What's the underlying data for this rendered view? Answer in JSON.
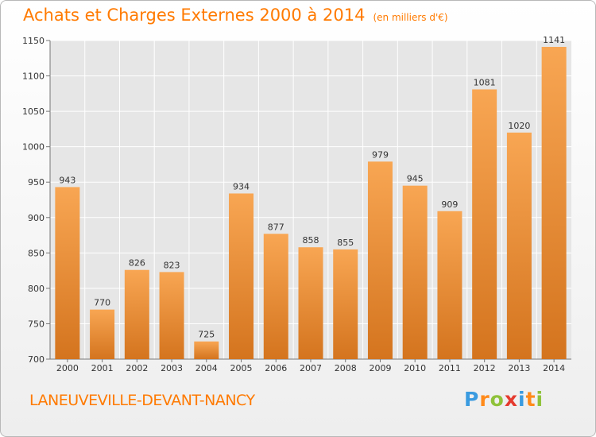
{
  "header": {
    "title": "Achats et Charges Externes 2000 à 2014",
    "unit": "(en milliers d'€)"
  },
  "footer": {
    "commune": "LANEUVEVILLE-DEVANT-NANCY",
    "logo_letters": [
      "P",
      "r",
      "o",
      "x",
      "i",
      "t",
      "i"
    ],
    "logo_colors": [
      "#3a9be0",
      "#ff8a1a",
      "#8fc23a",
      "#e53b2f",
      "#3a9be0",
      "#ff8a1a",
      "#8fc23a"
    ]
  },
  "colors": {
    "accent": "#ff7a00",
    "bar_top": "#f8a653",
    "bar_bottom": "#d4741e",
    "grid": "#ffffff",
    "plot_bg": "#e6e6e6"
  },
  "chart_data": {
    "type": "bar",
    "categories": [
      "2000",
      "2001",
      "2002",
      "2003",
      "2004",
      "2005",
      "2006",
      "2007",
      "2008",
      "2009",
      "2010",
      "2011",
      "2012",
      "2013",
      "2014"
    ],
    "values": [
      943,
      770,
      826,
      823,
      725,
      934,
      877,
      858,
      855,
      979,
      945,
      909,
      1081,
      1020,
      1141
    ],
    "title": "Achats et Charges Externes 2000 à 2014",
    "ylim": [
      700,
      1150
    ],
    "yticks": [
      700,
      750,
      800,
      850,
      900,
      950,
      1000,
      1050,
      1100,
      1150
    ],
    "grid": true,
    "legend": "none"
  }
}
